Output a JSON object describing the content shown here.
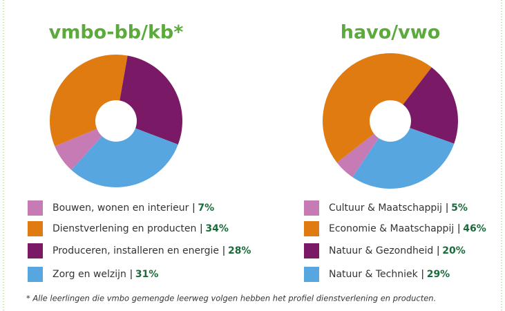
{
  "chart_data": [
    {
      "type": "pie",
      "title": "vmbo-bb/kb*",
      "categories": [
        "Bouwen, wonen en interieur",
        "Dienstverlening en producten",
        "Produceren, installeren en energie",
        "Zorg en welzijn"
      ],
      "values": [
        7,
        34,
        28,
        31
      ],
      "value_labels": [
        "7%",
        "34%",
        "28%",
        "31%"
      ],
      "colors": [
        "#c77bb5",
        "#e07b12",
        "#7a1a66",
        "#57a6e0"
      ]
    },
    {
      "type": "pie",
      "title": "havo/vwo",
      "categories": [
        "Cultuur & Maatschappij",
        "Economie & Maatschappij",
        "Natuur & Gezondheid",
        "Natuur & Techniek"
      ],
      "values": [
        5,
        46,
        20,
        29
      ],
      "value_labels": [
        "5%",
        "46%",
        "20%",
        "29%"
      ],
      "colors": [
        "#c77bb5",
        "#e07b12",
        "#7a1a66",
        "#57a6e0"
      ]
    }
  ],
  "footnote": "* Alle leerlingen die vmbo gemengde leerweg volgen hebben het profiel dienstverlening en producten."
}
